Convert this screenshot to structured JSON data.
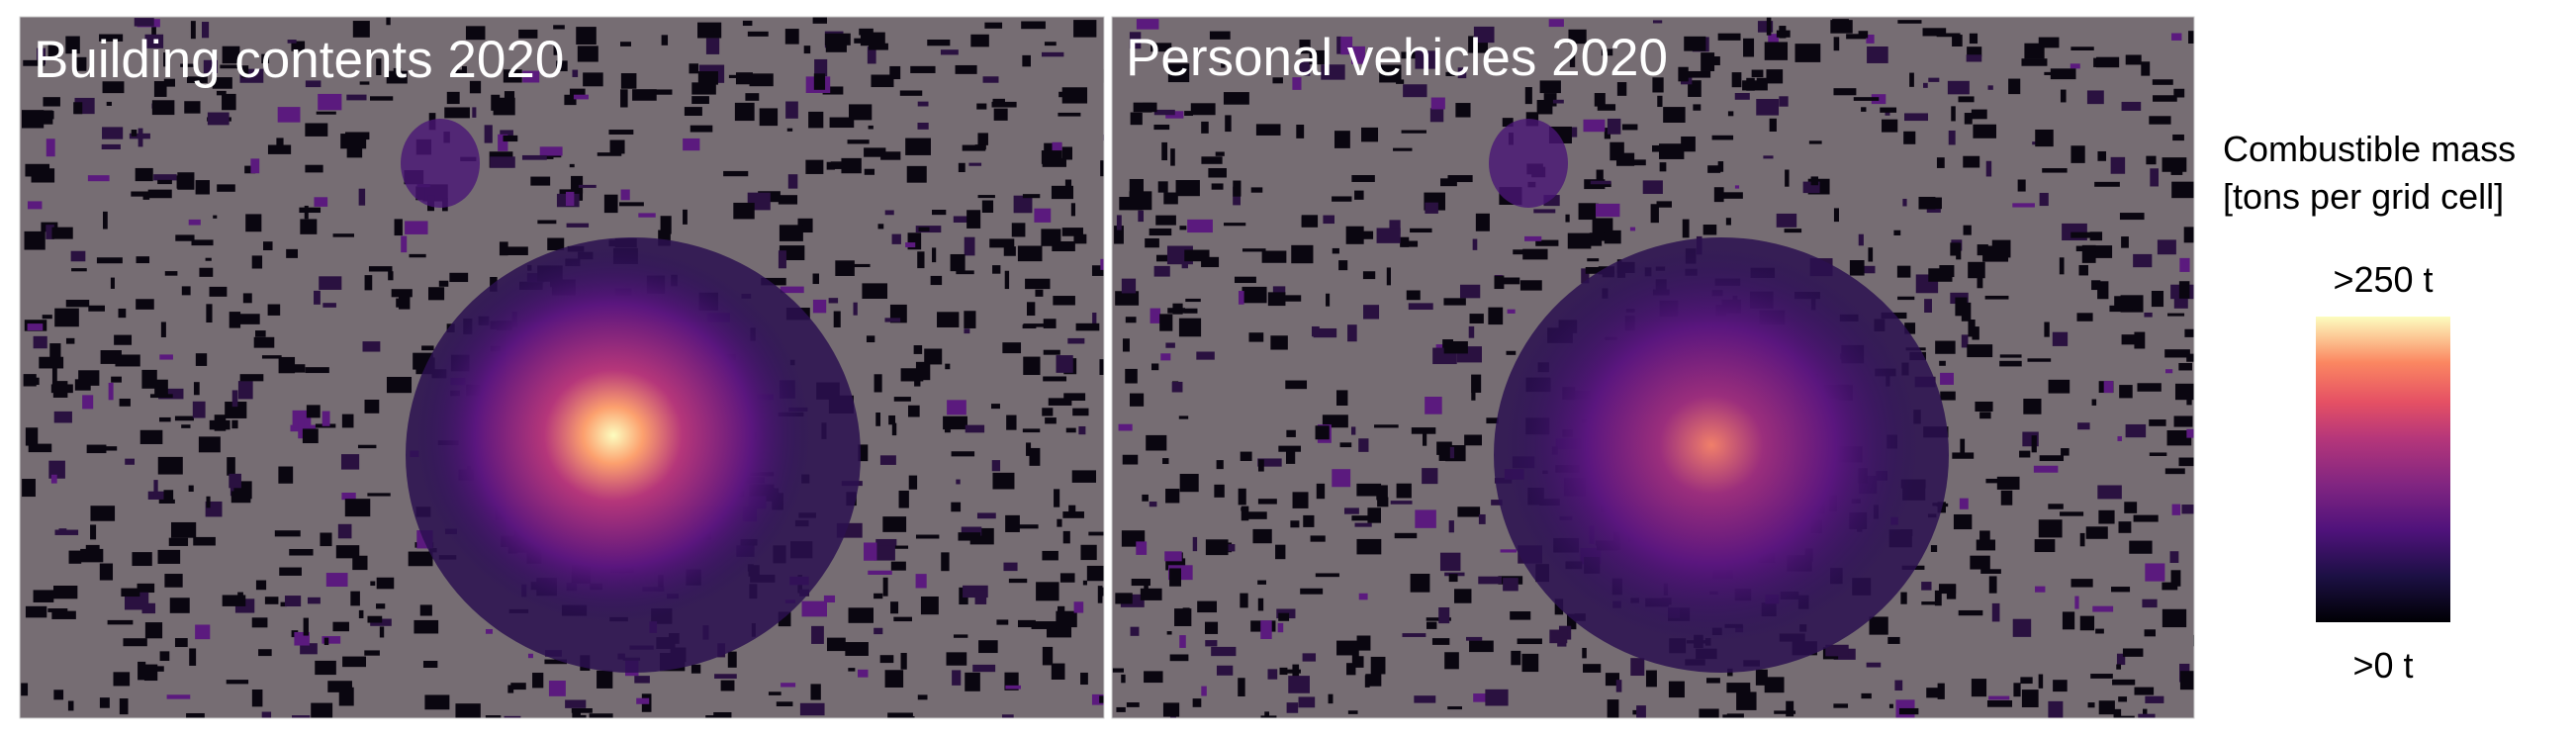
{
  "panels": [
    {
      "title": "Building contents 2020"
    },
    {
      "title": "Personal vehicles 2020"
    }
  ],
  "legend": {
    "title_lines": [
      "Combustible mass",
      "[tons per grid cell]"
    ],
    "max_label": ">250 t",
    "min_label": ">0 t"
  }
}
